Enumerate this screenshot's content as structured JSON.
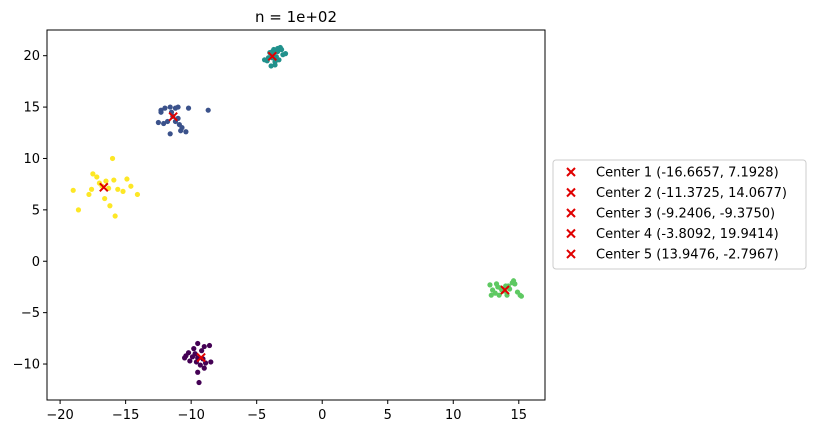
{
  "chart_data": {
    "type": "scatter",
    "title": "n = 1e+02",
    "xlabel": "",
    "ylabel": "",
    "xlim": [
      -21,
      17
    ],
    "ylim": [
      -13.5,
      22.5
    ],
    "xticks": [
      -20,
      -15,
      -10,
      -5,
      0,
      5,
      10,
      15
    ],
    "yticks": [
      -10,
      -5,
      0,
      5,
      10,
      15,
      20
    ],
    "xtick_labels": [
      "−20",
      "−15",
      "−10",
      "−5",
      "0",
      "5",
      "10",
      "15"
    ],
    "ytick_labels": [
      "−10",
      "−5",
      "0",
      "5",
      "10",
      "15",
      "20"
    ],
    "grid": false,
    "legend_position": "center-right outside",
    "clusters": [
      {
        "color": "#440154",
        "points": [
          [
            -9.5,
            -8.0
          ],
          [
            -9.0,
            -8.3
          ],
          [
            -8.6,
            -8.2
          ],
          [
            -9.8,
            -8.5
          ],
          [
            -9.2,
            -8.7
          ],
          [
            -10.2,
            -8.9
          ],
          [
            -9.7,
            -9.0
          ],
          [
            -10.4,
            -9.2
          ],
          [
            -9.9,
            -9.3
          ],
          [
            -9.5,
            -9.4
          ],
          [
            -9.1,
            -9.5
          ],
          [
            -10.1,
            -9.7
          ],
          [
            -9.6,
            -9.8
          ],
          [
            -8.9,
            -9.9
          ],
          [
            -8.5,
            -9.8
          ],
          [
            -9.3,
            -10.1
          ],
          [
            -9.0,
            -10.4
          ],
          [
            -9.5,
            -10.8
          ],
          [
            -9.4,
            -11.8
          ],
          [
            -10.5,
            -9.4
          ]
        ]
      },
      {
        "color": "#3b528b",
        "points": [
          [
            -12.3,
            14.7
          ],
          [
            -12.0,
            14.9
          ],
          [
            -11.6,
            15.0
          ],
          [
            -11.2,
            14.9
          ],
          [
            -11.0,
            15.0
          ],
          [
            -10.2,
            14.9
          ],
          [
            -8.7,
            14.7
          ],
          [
            -11.5,
            14.5
          ],
          [
            -11.4,
            14.1
          ],
          [
            -11.0,
            13.9
          ],
          [
            -12.5,
            13.5
          ],
          [
            -12.1,
            13.4
          ],
          [
            -11.8,
            13.6
          ],
          [
            -11.2,
            13.6
          ],
          [
            -10.7,
            13.0
          ],
          [
            -10.4,
            12.6
          ],
          [
            -10.8,
            12.7
          ],
          [
            -11.6,
            12.4
          ],
          [
            -12.3,
            14.5
          ],
          [
            -10.9,
            13.3
          ]
        ]
      },
      {
        "color": "#21918c",
        "points": [
          [
            -4.2,
            19.5
          ],
          [
            -3.9,
            20.2
          ],
          [
            -3.6,
            20.5
          ],
          [
            -3.4,
            20.7
          ],
          [
            -3.2,
            20.8
          ],
          [
            -3.7,
            20.6
          ],
          [
            -4.0,
            20.3
          ],
          [
            -3.5,
            19.9
          ],
          [
            -3.8,
            19.8
          ],
          [
            -3.3,
            19.6
          ],
          [
            -3.0,
            20.1
          ],
          [
            -2.8,
            20.2
          ],
          [
            -3.6,
            19.1
          ],
          [
            -3.9,
            19.0
          ],
          [
            -4.4,
            19.6
          ],
          [
            -3.4,
            20.4
          ],
          [
            -3.6,
            19.4
          ],
          [
            -3.1,
            20.6
          ],
          [
            -3.8,
            20.4
          ],
          [
            -4.1,
            19.8
          ]
        ]
      },
      {
        "color": "#5ec962",
        "points": [
          [
            12.8,
            -2.3
          ],
          [
            13.3,
            -2.2
          ],
          [
            13.6,
            -2.6
          ],
          [
            13.9,
            -2.9
          ],
          [
            14.2,
            -2.4
          ],
          [
            14.5,
            -2.1
          ],
          [
            14.6,
            -1.9
          ],
          [
            14.0,
            -2.4
          ],
          [
            13.7,
            -2.8
          ],
          [
            13.2,
            -3.1
          ],
          [
            12.9,
            -3.3
          ],
          [
            13.5,
            -3.3
          ],
          [
            14.1,
            -3.3
          ],
          [
            14.9,
            -3.0
          ],
          [
            15.1,
            -3.3
          ],
          [
            15.2,
            -3.4
          ],
          [
            13.0,
            -2.8
          ],
          [
            14.3,
            -2.7
          ],
          [
            14.7,
            -2.2
          ],
          [
            13.4,
            -2.5
          ]
        ]
      },
      {
        "color": "#fde725",
        "points": [
          [
            -19.0,
            6.9
          ],
          [
            -18.6,
            5.0
          ],
          [
            -17.8,
            6.5
          ],
          [
            -17.5,
            8.5
          ],
          [
            -17.2,
            8.2
          ],
          [
            -16.8,
            7.3
          ],
          [
            -16.6,
            6.1
          ],
          [
            -16.5,
            7.8
          ],
          [
            -16.2,
            5.4
          ],
          [
            -16.0,
            10.0
          ],
          [
            -15.9,
            7.9
          ],
          [
            -15.8,
            4.4
          ],
          [
            -15.6,
            7.0
          ],
          [
            -15.2,
            6.8
          ],
          [
            -14.9,
            8.0
          ],
          [
            -14.6,
            7.3
          ],
          [
            -14.1,
            6.5
          ],
          [
            -17.0,
            7.6
          ],
          [
            -16.3,
            7.1
          ],
          [
            -17.6,
            7.0
          ]
        ]
      }
    ],
    "centers": [
      {
        "label": "Center 1 (-16.6657, 7.1928)",
        "x": -16.6657,
        "y": 7.1928
      },
      {
        "label": "Center 2 (-11.3725, 14.0677)",
        "x": -11.3725,
        "y": 14.0677
      },
      {
        "label": "Center 3 (-9.2406, -9.3750)",
        "x": -9.2406,
        "y": -9.375
      },
      {
        "label": "Center 4 (-3.8092, 19.9414)",
        "x": -3.8092,
        "y": 19.9414
      },
      {
        "label": "Center 5 (13.9476, -2.7967)",
        "x": 13.9476,
        "y": -2.7967
      }
    ],
    "center_color": "#e00000"
  }
}
